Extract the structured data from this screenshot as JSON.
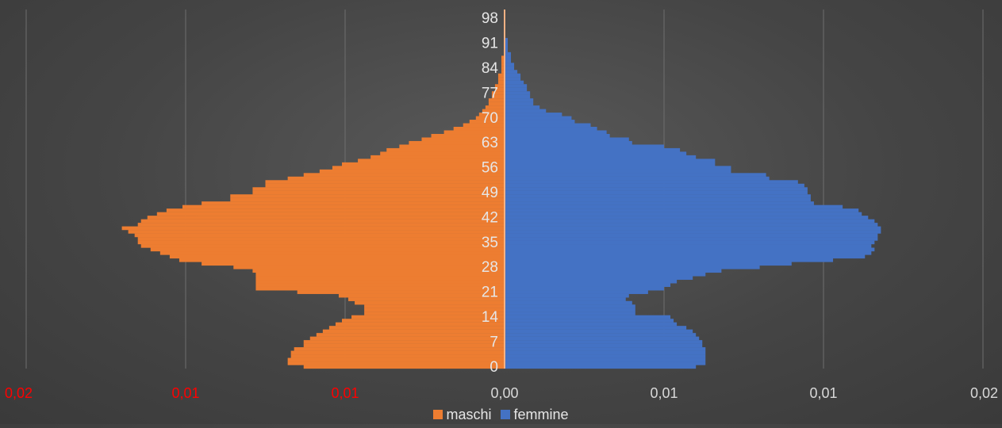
{
  "chart_data": {
    "type": "bar",
    "orientation": "horizontal",
    "layout": "population-pyramid",
    "title": "",
    "xlabel": "",
    "ylabel": "",
    "xlim": [
      -0.015,
      0.015
    ],
    "x_ticks": [
      {
        "value": -0.015,
        "label": "0,02",
        "color": "#ff0000"
      },
      {
        "value": -0.01,
        "label": "0,01",
        "color": "#ff0000"
      },
      {
        "value": -0.005,
        "label": "0,01",
        "color": "#ff0000"
      },
      {
        "value": 0.0,
        "label": "0,00",
        "color": "#d9d9d9"
      },
      {
        "value": 0.005,
        "label": "0,01",
        "color": "#d9d9d9"
      },
      {
        "value": 0.01,
        "label": "0,01",
        "color": "#d9d9d9"
      },
      {
        "value": 0.015,
        "label": "0,02",
        "color": "#d9d9d9"
      }
    ],
    "y_tick_labels": [
      "0",
      "7",
      "14",
      "21",
      "28",
      "35",
      "42",
      "49",
      "56",
      "63",
      "70",
      "77",
      "84",
      "91",
      "98"
    ],
    "categories": [
      0,
      1,
      2,
      3,
      4,
      5,
      6,
      7,
      8,
      9,
      10,
      11,
      12,
      13,
      14,
      15,
      16,
      17,
      18,
      19,
      20,
      21,
      22,
      23,
      24,
      25,
      26,
      27,
      28,
      29,
      30,
      31,
      32,
      33,
      34,
      35,
      36,
      37,
      38,
      39,
      40,
      41,
      42,
      43,
      44,
      45,
      46,
      47,
      48,
      49,
      50,
      51,
      52,
      53,
      54,
      55,
      56,
      57,
      58,
      59,
      60,
      61,
      62,
      63,
      64,
      65,
      66,
      67,
      68,
      69,
      70,
      71,
      72,
      73,
      74,
      75,
      76,
      77,
      78,
      79,
      80,
      81,
      82,
      83,
      84,
      85,
      86,
      87,
      88,
      89,
      90,
      91,
      92,
      93,
      94,
      95,
      96,
      97,
      98,
      99,
      100
    ],
    "grid": true,
    "legend_position": "bottom",
    "series": [
      {
        "name": "maschi",
        "color": "#ed7d31",
        "values": [
          0.0063,
          0.0068,
          0.0068,
          0.0067,
          0.0067,
          0.0066,
          0.0063,
          0.0063,
          0.0061,
          0.0059,
          0.0057,
          0.0055,
          0.0053,
          0.0051,
          0.0048,
          0.0044,
          0.0044,
          0.0044,
          0.0047,
          0.0049,
          0.0052,
          0.0065,
          0.0078,
          0.0078,
          0.0078,
          0.0078,
          0.0078,
          0.0079,
          0.0085,
          0.0095,
          0.0102,
          0.0105,
          0.0108,
          0.0111,
          0.0114,
          0.0115,
          0.0115,
          0.0116,
          0.0118,
          0.012,
          0.0115,
          0.0114,
          0.0112,
          0.0109,
          0.0106,
          0.0101,
          0.0095,
          0.0086,
          0.0086,
          0.0079,
          0.0079,
          0.0075,
          0.0075,
          0.0068,
          0.0063,
          0.0058,
          0.0054,
          0.0051,
          0.0046,
          0.0042,
          0.0039,
          0.0037,
          0.0033,
          0.003,
          0.0026,
          0.0023,
          0.0019,
          0.0016,
          0.0013,
          0.0011,
          0.0009,
          0.0008,
          0.0007,
          0.0006,
          0.0005,
          0.0005,
          0.0004,
          0.0004,
          0.0003,
          0.0003,
          0.0002,
          0.0002,
          0.0002,
          0.0001,
          0.0001,
          0.0001,
          0.0001,
          0.0001,
          0.0,
          0.0,
          0.0,
          0.0,
          0.0,
          0.0,
          0.0,
          0.0,
          0.0,
          0.0,
          0.0,
          0.0,
          0.0
        ]
      },
      {
        "name": "femmine",
        "color": "#4472c4",
        "values": [
          0.006,
          0.0063,
          0.0063,
          0.0063,
          0.0063,
          0.0063,
          0.0062,
          0.0062,
          0.0061,
          0.006,
          0.0059,
          0.0057,
          0.0054,
          0.0053,
          0.0052,
          0.0041,
          0.0041,
          0.0041,
          0.004,
          0.0038,
          0.0039,
          0.0045,
          0.005,
          0.0052,
          0.0054,
          0.0059,
          0.0063,
          0.0068,
          0.008,
          0.009,
          0.0103,
          0.0113,
          0.0115,
          0.0116,
          0.0115,
          0.0116,
          0.0117,
          0.0117,
          0.0118,
          0.0118,
          0.0117,
          0.0116,
          0.0114,
          0.0112,
          0.0111,
          0.0106,
          0.0097,
          0.0096,
          0.0096,
          0.0095,
          0.0095,
          0.0094,
          0.0092,
          0.0083,
          0.0082,
          0.0071,
          0.0071,
          0.0066,
          0.0066,
          0.006,
          0.0057,
          0.0055,
          0.005,
          0.004,
          0.0039,
          0.0033,
          0.0032,
          0.0029,
          0.0027,
          0.0022,
          0.0021,
          0.0018,
          0.0013,
          0.0011,
          0.0009,
          0.0009,
          0.0008,
          0.0008,
          0.0007,
          0.0007,
          0.0006,
          0.0005,
          0.0005,
          0.0004,
          0.0003,
          0.0003,
          0.0002,
          0.0002,
          0.0002,
          0.0001,
          0.0001,
          0.0001,
          0.0001,
          0.0,
          0.0,
          0.0,
          0.0,
          0.0,
          0.0,
          0.0,
          0.0
        ]
      }
    ]
  }
}
